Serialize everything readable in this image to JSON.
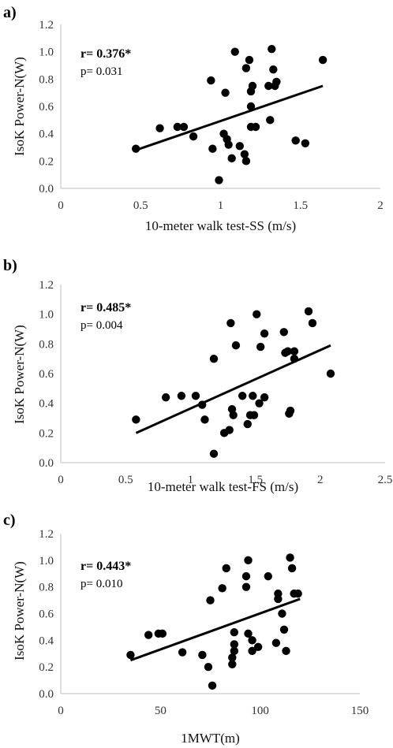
{
  "chart_data": [
    {
      "type": "scatter",
      "panel_label": "a)",
      "xlabel": "10-meter walk test-SS (m/s)",
      "ylabel": "IsoK Power-N(W)",
      "xlim": [
        0,
        2
      ],
      "ylim": [
        0,
        1.2
      ],
      "xticks": [
        "0",
        "0.5",
        "1",
        "1.5",
        "2"
      ],
      "yticks": [
        "0.0",
        "0.2",
        "0.4",
        "0.6",
        "0.8",
        "1.0",
        "1.2"
      ],
      "annotation_r": "r= 0.376*",
      "annotation_p": "p= 0.031",
      "trendline": [
        [
          0.47,
          0.28
        ],
        [
          1.64,
          0.75
        ]
      ],
      "points": [
        [
          0.47,
          0.29
        ],
        [
          0.62,
          0.44
        ],
        [
          0.73,
          0.45
        ],
        [
          0.77,
          0.45
        ],
        [
          0.83,
          0.38
        ],
        [
          0.94,
          0.79
        ],
        [
          0.95,
          0.29
        ],
        [
          0.99,
          0.06
        ],
        [
          1.02,
          0.4
        ],
        [
          1.03,
          0.7
        ],
        [
          1.04,
          0.36
        ],
        [
          1.05,
          0.32
        ],
        [
          1.07,
          0.22
        ],
        [
          1.09,
          1.0
        ],
        [
          1.12,
          0.31
        ],
        [
          1.15,
          0.25
        ],
        [
          1.16,
          0.2
        ],
        [
          1.16,
          0.88
        ],
        [
          1.18,
          0.94
        ],
        [
          1.19,
          0.45
        ],
        [
          1.19,
          0.6
        ],
        [
          1.19,
          0.71
        ],
        [
          1.2,
          0.75
        ],
        [
          1.22,
          0.45
        ],
        [
          1.3,
          0.75
        ],
        [
          1.31,
          0.5
        ],
        [
          1.32,
          1.02
        ],
        [
          1.33,
          0.87
        ],
        [
          1.34,
          0.75
        ],
        [
          1.35,
          0.78
        ],
        [
          1.47,
          0.35
        ],
        [
          1.53,
          0.33
        ],
        [
          1.64,
          0.94
        ]
      ]
    },
    {
      "type": "scatter",
      "panel_label": "b)",
      "xlabel": "10-meter walk test-FS (m/s)",
      "ylabel": "IsoK Power-N(W)",
      "xlim": [
        0,
        2.5
      ],
      "ylim": [
        0,
        1.2
      ],
      "xticks": [
        "0",
        "0.5",
        "1",
        "1.5",
        "2",
        "2.5"
      ],
      "yticks": [
        "0.0",
        "0.2",
        "0.4",
        "0.6",
        "0.8",
        "1.0",
        "1.2"
      ],
      "annotation_r": "r= 0.485*",
      "annotation_p": "p= 0.004",
      "trendline": [
        [
          0.58,
          0.2
        ],
        [
          2.08,
          0.79
        ]
      ],
      "points": [
        [
          0.58,
          0.29
        ],
        [
          0.81,
          0.44
        ],
        [
          0.93,
          0.45
        ],
        [
          1.04,
          0.45
        ],
        [
          1.09,
          0.39
        ],
        [
          1.11,
          0.29
        ],
        [
          1.18,
          0.06
        ],
        [
          1.18,
          0.7
        ],
        [
          1.26,
          0.2
        ],
        [
          1.3,
          0.22
        ],
        [
          1.31,
          0.94
        ],
        [
          1.32,
          0.36
        ],
        [
          1.33,
          0.32
        ],
        [
          1.35,
          0.79
        ],
        [
          1.4,
          0.45
        ],
        [
          1.44,
          0.26
        ],
        [
          1.46,
          0.32
        ],
        [
          1.48,
          0.45
        ],
        [
          1.49,
          0.32
        ],
        [
          1.51,
          1.0
        ],
        [
          1.53,
          0.4
        ],
        [
          1.54,
          0.78
        ],
        [
          1.57,
          0.87
        ],
        [
          1.57,
          0.44
        ],
        [
          1.72,
          0.88
        ],
        [
          1.73,
          0.74
        ],
        [
          1.75,
          0.75
        ],
        [
          1.76,
          0.33
        ],
        [
          1.77,
          0.35
        ],
        [
          1.8,
          0.7
        ],
        [
          1.8,
          0.75
        ],
        [
          1.91,
          1.02
        ],
        [
          1.94,
          0.94
        ],
        [
          2.08,
          0.6
        ]
      ]
    },
    {
      "type": "scatter",
      "panel_label": "c)",
      "xlabel": "1MWT(m)",
      "ylabel": "IsoK Power-N(W)",
      "xlim": [
        0,
        150
      ],
      "ylim": [
        0,
        1.2
      ],
      "xticks": [
        "0",
        "50",
        "100",
        "150"
      ],
      "yticks": [
        "0.0",
        "0.2",
        "0.4",
        "0.6",
        "0.8",
        "1.0",
        "1.2"
      ],
      "annotation_r": "r= 0.443*",
      "annotation_p": "p= 0.010",
      "trendline": [
        [
          35,
          0.25
        ],
        [
          120,
          0.71
        ]
      ],
      "points": [
        [
          35,
          0.29
        ],
        [
          44,
          0.44
        ],
        [
          49,
          0.45
        ],
        [
          51,
          0.45
        ],
        [
          61,
          0.31
        ],
        [
          71,
          0.29
        ],
        [
          74,
          0.2
        ],
        [
          75,
          0.7
        ],
        [
          76,
          0.06
        ],
        [
          81,
          0.79
        ],
        [
          83,
          0.94
        ],
        [
          86,
          0.22
        ],
        [
          86,
          0.27
        ],
        [
          87,
          0.32
        ],
        [
          87,
          0.46
        ],
        [
          87,
          0.37
        ],
        [
          93,
          0.88
        ],
        [
          93,
          0.8
        ],
        [
          94,
          1.0
        ],
        [
          94,
          0.45
        ],
        [
          96,
          0.32
        ],
        [
          96,
          0.4
        ],
        [
          99,
          0.35
        ],
        [
          104,
          0.88
        ],
        [
          108,
          0.38
        ],
        [
          109,
          0.71
        ],
        [
          109,
          0.75
        ],
        [
          111,
          0.6
        ],
        [
          112,
          0.48
        ],
        [
          113,
          0.32
        ],
        [
          115,
          1.02
        ],
        [
          116,
          0.94
        ],
        [
          117,
          0.75
        ],
        [
          119,
          0.75
        ]
      ]
    }
  ]
}
